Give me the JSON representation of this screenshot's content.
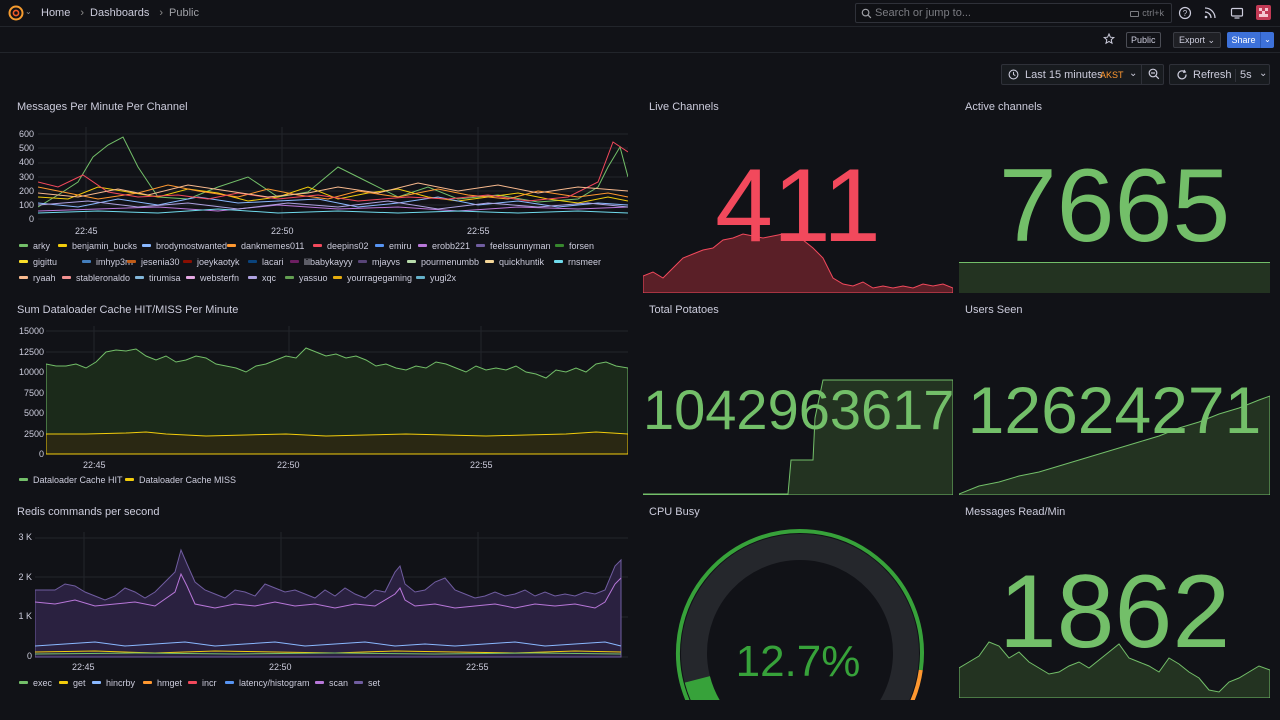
{
  "topbar": {
    "breadcrumb": [
      "Home",
      "Dashboards",
      "Public"
    ],
    "search_placeholder": "Search or jump to...",
    "search_shortcut": "ctrl+k"
  },
  "subbar": {
    "public_badge": "Public",
    "export_label": "Export",
    "share_label": "Share"
  },
  "timepicker": {
    "range_label": "Last 15 minutes",
    "timezone": "AKST",
    "refresh_label": "Refresh",
    "refresh_interval": "5s"
  },
  "colors": {
    "green": "#73bf69",
    "red": "#f2495c",
    "orange": "#ff9830",
    "background": "#111217"
  },
  "panels": {
    "messages_per_minute": {
      "title": "Messages Per Minute Per Channel",
      "y_ticks": [
        "600",
        "500",
        "400",
        "300",
        "200",
        "100",
        "0"
      ],
      "x_ticks": [
        "22:45",
        "22:50",
        "22:55"
      ],
      "legend": [
        {
          "name": "arky",
          "color": "#73bf69"
        },
        {
          "name": "benjamin_bucks",
          "color": "#f2cc0c"
        },
        {
          "name": "brodymostwanted",
          "color": "#8ab8ff"
        },
        {
          "name": "dankmemes011",
          "color": "#ff9830"
        },
        {
          "name": "deepins02",
          "color": "#f2495c"
        },
        {
          "name": "emiru",
          "color": "#5794f2"
        },
        {
          "name": "erobb221",
          "color": "#b877d9"
        },
        {
          "name": "feelssunnyman",
          "color": "#705da0"
        },
        {
          "name": "forsen",
          "color": "#37872d"
        },
        {
          "name": "gigittu",
          "color": "#fade2a"
        },
        {
          "name": "imhyp3rrr",
          "color": "#447ebc"
        },
        {
          "name": "jesenia30",
          "color": "#c15c17"
        },
        {
          "name": "joeykaotyk",
          "color": "#890f02"
        },
        {
          "name": "lacari",
          "color": "#0a437c"
        },
        {
          "name": "lilbabykayyy",
          "color": "#6d1f62"
        },
        {
          "name": "mjayvs",
          "color": "#584477"
        },
        {
          "name": "pourmenumbb",
          "color": "#b7dbab"
        },
        {
          "name": "quickhuntik",
          "color": "#f4d598"
        },
        {
          "name": "rnsmeer",
          "color": "#70dbed"
        },
        {
          "name": "ryaah",
          "color": "#f9ba8f"
        },
        {
          "name": "stableronaldo",
          "color": "#f29191"
        },
        {
          "name": "tirumisa",
          "color": "#82b5d8"
        },
        {
          "name": "websterfn",
          "color": "#e5a8e2"
        },
        {
          "name": "xqc",
          "color": "#aea2e0"
        },
        {
          "name": "yassuo",
          "color": "#629e51"
        },
        {
          "name": "yourragegaming",
          "color": "#e5ac0e"
        },
        {
          "name": "yugi2x",
          "color": "#64b0c8"
        }
      ]
    },
    "live_channels": {
      "title": "Live Channels",
      "value": "411",
      "color": "#f2495c"
    },
    "active_channels": {
      "title": "Active channels",
      "value": "7665",
      "color": "#73bf69"
    },
    "dataloader": {
      "title": "Sum Dataloader Cache HIT/MISS Per Minute",
      "y_ticks": [
        "15000",
        "12500",
        "10000",
        "7500",
        "5000",
        "2500",
        "0"
      ],
      "x_ticks": [
        "22:45",
        "22:50",
        "22:55"
      ],
      "legend": [
        {
          "name": "Dataloader Cache HIT",
          "color": "#73bf69"
        },
        {
          "name": "Dataloader Cache MISS",
          "color": "#f2cc0c"
        }
      ]
    },
    "total_potatoes": {
      "title": "Total Potatoes",
      "value": "1042963617",
      "color": "#73bf69"
    },
    "users_seen": {
      "title": "Users Seen",
      "value": "12624271",
      "color": "#73bf69"
    },
    "redis": {
      "title": "Redis commands per second",
      "y_ticks": [
        "3 K",
        "2 K",
        "1 K",
        "0"
      ],
      "x_ticks": [
        "22:45",
        "22:50",
        "22:55"
      ],
      "legend": [
        {
          "name": "exec",
          "color": "#73bf69"
        },
        {
          "name": "get",
          "color": "#f2cc0c"
        },
        {
          "name": "hincrby",
          "color": "#8ab8ff"
        },
        {
          "name": "hmget",
          "color": "#ff9830"
        },
        {
          "name": "incr",
          "color": "#f2495c"
        },
        {
          "name": "latency/histogram",
          "color": "#5794f2"
        },
        {
          "name": "scan",
          "color": "#b877d9"
        },
        {
          "name": "set",
          "color": "#705da0"
        }
      ]
    },
    "cpu_busy": {
      "title": "CPU Busy",
      "value": "12.7%",
      "percent": 12.7,
      "color": "#37a23a"
    },
    "messages_read": {
      "title": "Messages Read/Min",
      "value": "1862",
      "color": "#73bf69"
    }
  }
}
